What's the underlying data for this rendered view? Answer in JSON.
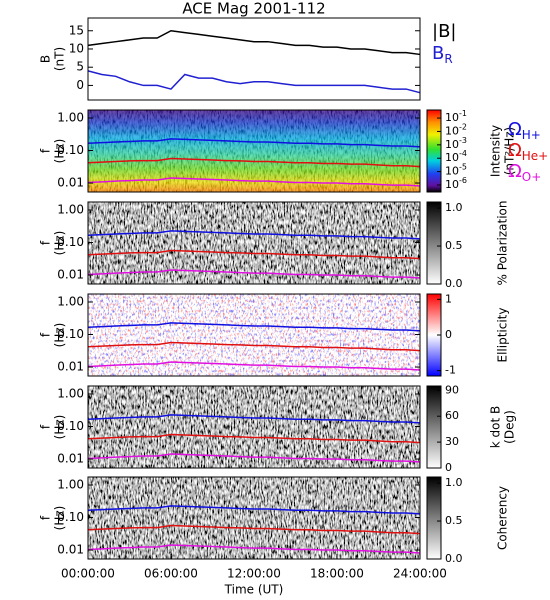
{
  "chart_data": [
    {
      "type": "line",
      "title": "ACE Mag 2001-112",
      "ylabel": [
        "B",
        "(nT)"
      ],
      "x": [
        0,
        1,
        2,
        3,
        4,
        5,
        6,
        7,
        8,
        9,
        10,
        11,
        12,
        13,
        14,
        15,
        16,
        17,
        18,
        19,
        20,
        21,
        22,
        23,
        24
      ],
      "xlim": [
        0,
        24
      ],
      "ylim": [
        -4,
        18.5
      ],
      "yticks": [
        0,
        5,
        10,
        15
      ],
      "series": [
        {
          "name": "|B|",
          "color": "#000000",
          "values": [
            11,
            11.5,
            12,
            12.5,
            13,
            13,
            15,
            14.5,
            14,
            13.5,
            13,
            12.5,
            12,
            12,
            11.5,
            11,
            11,
            10.5,
            10.5,
            10,
            10,
            9.5,
            9,
            9,
            8.5
          ]
        },
        {
          "name": "B",
          "name_subscript": "R",
          "color": "#2020d0",
          "values": [
            4,
            3,
            2.5,
            1,
            0,
            0,
            -1,
            3,
            2,
            2,
            1,
            0.5,
            1,
            1,
            0.5,
            0,
            0,
            0,
            0,
            0,
            0,
            -0.5,
            -1,
            -1,
            -2
          ]
        }
      ]
    },
    {
      "type": "spectrogram",
      "ylabel": [
        "f",
        "(Hz)"
      ],
      "log_y": true,
      "ylim": [
        0.0053,
        1.76
      ],
      "yticks": [
        0.01,
        {
          "value": 0.1,
          "label": "0.10"
        },
        {
          "value": 1,
          "label": "1.00"
        }
      ],
      "xlim": [
        0,
        24
      ],
      "x": [
        0,
        1,
        2,
        3,
        4,
        5,
        6,
        7,
        8,
        9,
        10,
        11,
        12,
        13,
        14,
        15,
        16,
        17,
        18,
        19,
        20,
        21,
        22,
        23,
        24
      ],
      "colormap": "rainbow",
      "clog": true,
      "clim": [
        3e-07,
        0.4
      ],
      "cticks": [
        {
          "value": 0.1,
          "label": "10",
          "exponent": "-1"
        },
        {
          "value": 0.01,
          "label": "10",
          "exponent": "-2"
        },
        {
          "value": 0.001,
          "label": "10",
          "exponent": "-3"
        },
        {
          "value": 0.0001,
          "label": "10",
          "exponent": "-4"
        },
        {
          "value": 1e-05,
          "label": "10",
          "exponent": "-5"
        },
        {
          "value": 1e-06,
          "label": "10",
          "exponent": "-6"
        }
      ],
      "clabel": [
        "Intensity",
        "(nT²/Hz)"
      ],
      "series": [
        {
          "name": "Ω",
          "name_subscript": "H+",
          "color": "#1010e0",
          "values": [
            0.167,
            0.175,
            0.182,
            0.19,
            0.198,
            0.198,
            0.228,
            0.22,
            0.213,
            0.205,
            0.198,
            0.19,
            0.182,
            0.182,
            0.175,
            0.167,
            0.167,
            0.16,
            0.16,
            0.152,
            0.152,
            0.144,
            0.137,
            0.137,
            0.129
          ]
        },
        {
          "name": "Ω",
          "name_subscript": "He+",
          "color": "#e01010",
          "values": [
            0.042,
            0.044,
            0.046,
            0.048,
            0.049,
            0.049,
            0.057,
            0.055,
            0.053,
            0.051,
            0.049,
            0.048,
            0.046,
            0.046,
            0.044,
            0.042,
            0.042,
            0.04,
            0.04,
            0.038,
            0.038,
            0.036,
            0.034,
            0.034,
            0.032
          ]
        },
        {
          "name": "Ω",
          "name_subscript": "O+",
          "color": "#e010e0",
          "values": [
            0.0104,
            0.0109,
            0.0114,
            0.0119,
            0.0124,
            0.0124,
            0.0143,
            0.0138,
            0.0133,
            0.0128,
            0.0124,
            0.0119,
            0.0114,
            0.0114,
            0.0109,
            0.0104,
            0.0104,
            0.01,
            0.01,
            0.0095,
            0.0095,
            0.009,
            0.0086,
            0.0086,
            0.0081
          ]
        }
      ]
    },
    {
      "type": "spectrogram",
      "ylabel": [
        "f",
        "(Hz)"
      ],
      "log_y": true,
      "ylim": [
        0.0053,
        1.76
      ],
      "yticks": [
        0.01,
        {
          "value": 0.1,
          "label": "0.10"
        },
        {
          "value": 1,
          "label": "1.00"
        }
      ],
      "xlim": [
        0,
        24
      ],
      "colormap": "gray",
      "clim": [
        0,
        1.08
      ],
      "cticks": [
        {
          "value": 0,
          "label": "0.0"
        },
        {
          "value": 0.5,
          "label": "0.5"
        },
        {
          "value": 1,
          "label": "1.0"
        }
      ],
      "clabel": [
        "% Polarization"
      ]
    },
    {
      "type": "spectrogram",
      "ylabel": [
        "f",
        "(Hz)"
      ],
      "log_y": true,
      "ylim": [
        0.0053,
        1.76
      ],
      "yticks": [
        0.01,
        {
          "value": 0.1,
          "label": "0.10"
        },
        {
          "value": 1,
          "label": "1.00"
        }
      ],
      "xlim": [
        0,
        24
      ],
      "colormap": "bwr",
      "clim": [
        -1.15,
        1.15
      ],
      "cticks": [
        -1,
        0,
        1
      ],
      "clabel": [
        "Ellipticity"
      ]
    },
    {
      "type": "spectrogram",
      "ylabel": [
        "f",
        "(Hz)"
      ],
      "log_y": true,
      "ylim": [
        0.0053,
        1.76
      ],
      "yticks": [
        0.01,
        {
          "value": 0.1,
          "label": "0.10"
        },
        {
          "value": 1,
          "label": "1.00"
        }
      ],
      "xlim": [
        0,
        24
      ],
      "colormap": "gray",
      "clim": [
        0,
        95
      ],
      "cticks": [
        0,
        30,
        60,
        90
      ],
      "clabel": [
        "k dot B",
        "(Deg)"
      ]
    },
    {
      "type": "spectrogram",
      "ylabel": [
        "f",
        "(Hz)"
      ],
      "log_y": true,
      "ylim": [
        0.0053,
        1.76
      ],
      "yticks": [
        0.01,
        {
          "value": 0.1,
          "label": "0.10"
        },
        {
          "value": 1,
          "label": "1.00"
        }
      ],
      "xlim": [
        0,
        24
      ],
      "colormap": "gray",
      "clim": [
        0,
        1.08
      ],
      "cticks": [
        {
          "value": 0,
          "label": "0.0"
        },
        {
          "value": 0.5,
          "label": "0.5"
        },
        {
          "value": 1,
          "label": "1.0"
        }
      ],
      "clabel": [
        "Coherency"
      ],
      "xticks": [
        {
          "value": 0,
          "label": "00:00:00"
        },
        {
          "value": 6,
          "label": "06:00:00"
        },
        {
          "value": 12,
          "label": "12:00:00"
        },
        {
          "value": 18,
          "label": "18:00:00"
        },
        {
          "value": 24,
          "label": "24:00:00"
        }
      ],
      "xlabel": "Time (UT)"
    }
  ]
}
